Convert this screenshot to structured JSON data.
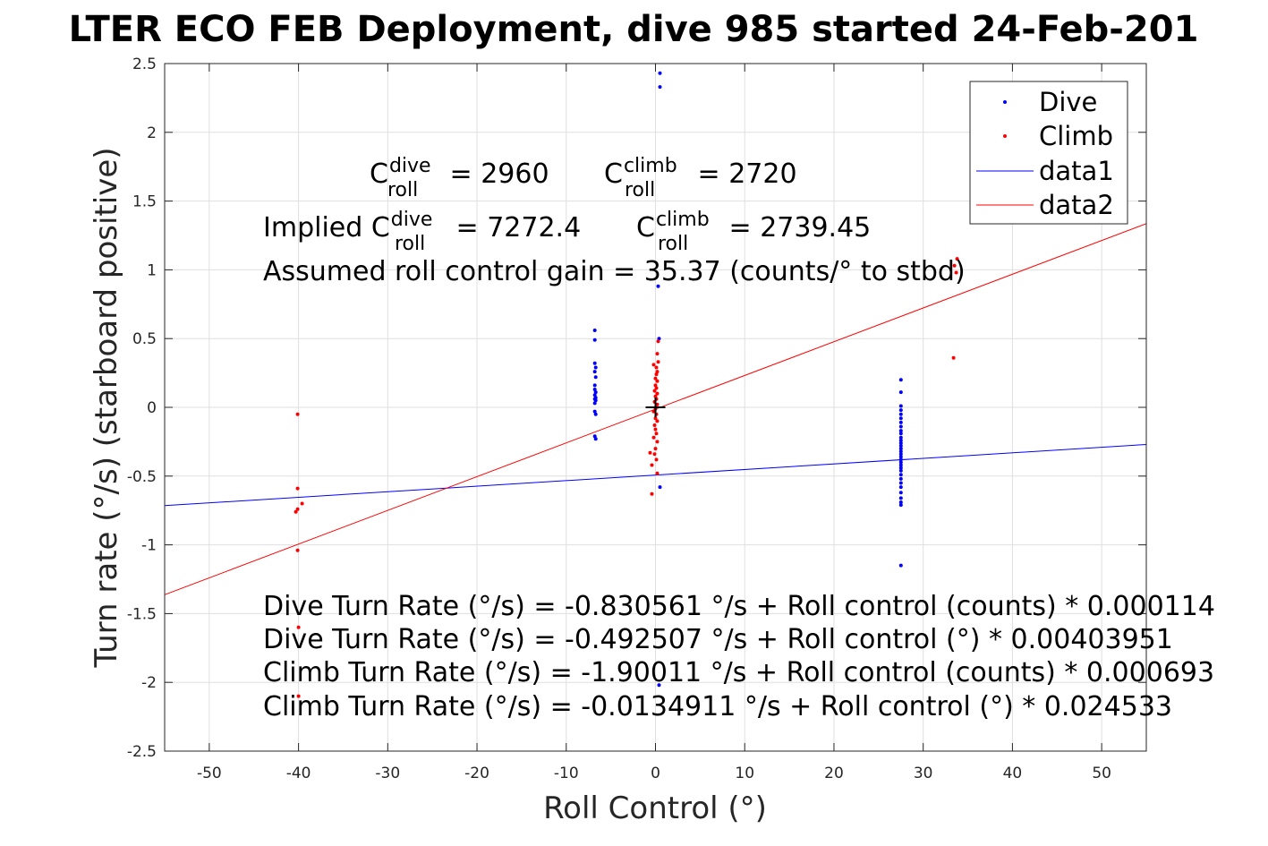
{
  "chart_data": {
    "type": "scatter",
    "title": "LTER ECO FEB Deployment, dive 985 started 24-Feb-201",
    "xlabel": "Roll Control (°)",
    "ylabel": "Turn rate (°/s) (starboard positive)",
    "xlim": [
      -55,
      55
    ],
    "ylim": [
      -2.5,
      2.5
    ],
    "x_ticks": [
      "-50",
      "-40",
      "-30",
      "-20",
      "-10",
      "0",
      "10",
      "20",
      "30",
      "40",
      "50"
    ],
    "y_ticks": [
      "-2.5",
      "-2",
      "-1.5",
      "-1",
      "-0.5",
      "0",
      "0.5",
      "1",
      "1.5",
      "2",
      "2.5"
    ],
    "grid": true,
    "legend_position": "top-right",
    "series": [
      {
        "name": "Dive",
        "kind": "points",
        "color": "#0000ff",
        "points": [
          [
            0.5,
            2.43
          ],
          [
            0.5,
            2.33
          ],
          [
            0.3,
            0.88
          ],
          [
            0.4,
            0.5
          ],
          [
            0.5,
            -0.58
          ],
          [
            0.4,
            -2.02
          ],
          [
            -6.8,
            0.56
          ],
          [
            -6.8,
            0.49
          ],
          [
            -6.8,
            0.32
          ],
          [
            -6.7,
            0.29
          ],
          [
            -6.8,
            0.26
          ],
          [
            -6.7,
            0.22
          ],
          [
            -6.8,
            0.16
          ],
          [
            -6.8,
            0.13
          ],
          [
            -6.7,
            0.11
          ],
          [
            -6.8,
            0.09
          ],
          [
            -6.7,
            0.07
          ],
          [
            -6.8,
            0.06
          ],
          [
            -6.7,
            0.05
          ],
          [
            -6.8,
            0.03
          ],
          [
            -6.8,
            -0.03
          ],
          [
            -6.7,
            -0.05
          ],
          [
            -6.8,
            -0.21
          ],
          [
            -6.7,
            -0.23
          ],
          [
            27.5,
            0.2
          ],
          [
            27.5,
            0.11
          ],
          [
            27.5,
            0.01
          ],
          [
            27.5,
            -0.02
          ],
          [
            27.5,
            -0.05
          ],
          [
            27.5,
            -0.08
          ],
          [
            27.5,
            -0.11
          ],
          [
            27.5,
            -0.14
          ],
          [
            27.5,
            -0.17
          ],
          [
            27.5,
            -0.19
          ],
          [
            27.5,
            -0.22
          ],
          [
            27.5,
            -0.24
          ],
          [
            27.5,
            -0.26
          ],
          [
            27.5,
            -0.28
          ],
          [
            27.5,
            -0.3
          ],
          [
            27.5,
            -0.32
          ],
          [
            27.5,
            -0.34
          ],
          [
            27.5,
            -0.36
          ],
          [
            27.5,
            -0.38
          ],
          [
            27.5,
            -0.4
          ],
          [
            27.5,
            -0.42
          ],
          [
            27.5,
            -0.44
          ],
          [
            27.5,
            -0.46
          ],
          [
            27.5,
            -0.49
          ],
          [
            27.5,
            -0.52
          ],
          [
            27.5,
            -0.55
          ],
          [
            27.5,
            -0.58
          ],
          [
            27.5,
            -0.62
          ],
          [
            27.5,
            -0.66
          ],
          [
            27.5,
            -0.69
          ],
          [
            27.5,
            -0.71
          ],
          [
            27.5,
            -1.15
          ]
        ]
      },
      {
        "name": "Climb",
        "kind": "points",
        "color": "#ff0000",
        "points": [
          [
            -40.1,
            -0.05
          ],
          [
            -40.1,
            -0.59
          ],
          [
            -40.1,
            -0.74
          ],
          [
            -39.6,
            -0.7
          ],
          [
            -40.3,
            -0.76
          ],
          [
            -40.1,
            -1.04
          ],
          [
            -40.0,
            -1.6
          ],
          [
            -40.0,
            -2.1
          ],
          [
            0.3,
            0.48
          ],
          [
            0.2,
            0.39
          ],
          [
            0.3,
            0.33
          ],
          [
            -0.2,
            0.31
          ],
          [
            0.1,
            0.29
          ],
          [
            0.2,
            0.26
          ],
          [
            0.1,
            0.24
          ],
          [
            0.0,
            0.21
          ],
          [
            0.2,
            0.19
          ],
          [
            0.0,
            0.16
          ],
          [
            0.1,
            0.14
          ],
          [
            -0.1,
            0.12
          ],
          [
            0.2,
            0.1
          ],
          [
            0.0,
            0.08
          ],
          [
            0.1,
            0.06
          ],
          [
            -0.1,
            0.04
          ],
          [
            0.2,
            0.02
          ],
          [
            0.0,
            -0.01
          ],
          [
            -0.2,
            -0.03
          ],
          [
            0.1,
            -0.05
          ],
          [
            0.0,
            -0.08
          ],
          [
            0.2,
            -0.1
          ],
          [
            -0.1,
            -0.13
          ],
          [
            0.0,
            -0.16
          ],
          [
            0.1,
            -0.19
          ],
          [
            -0.2,
            -0.22
          ],
          [
            0.2,
            -0.25
          ],
          [
            0.0,
            -0.3
          ],
          [
            -0.1,
            -0.34
          ],
          [
            0.1,
            -0.38
          ],
          [
            -0.4,
            -0.42
          ],
          [
            -0.6,
            -0.33
          ],
          [
            -0.4,
            -0.63
          ],
          [
            0.2,
            -0.48
          ],
          [
            33.8,
            1.08
          ],
          [
            33.5,
            1.03
          ],
          [
            33.7,
            0.98
          ],
          [
            33.4,
            0.36
          ]
        ]
      },
      {
        "name": "data1",
        "kind": "line",
        "color": "#0000ff",
        "points": [
          [
            -55,
            -0.7147
          ],
          [
            55,
            -0.2703
          ]
        ]
      },
      {
        "name": "data2",
        "kind": "line",
        "color": "#ff0000",
        "points": [
          [
            -55,
            -1.3628
          ],
          [
            55,
            1.3358
          ]
        ]
      }
    ],
    "reference_marker": {
      "x": 0,
      "y": 0,
      "symbol": "+"
    },
    "annotations": {
      "c_roll_dive": {
        "prefix": "C",
        "sup": "dive",
        "sub": "roll",
        "value": " = 2960"
      },
      "c_roll_climb": {
        "prefix": "C",
        "sup": "climb",
        "sub": "roll",
        "value": " = 2720"
      },
      "implied_dive": {
        "prefix": "Implied C",
        "sup": "dive",
        "sub": "roll",
        "value": " = 7272.4"
      },
      "implied_climb": {
        "prefix": "C",
        "sup": "climb",
        "sub": "roll",
        "value": " = 2739.45"
      },
      "gain": "Assumed roll control gain = 35.37 (counts/° to stbd)",
      "equations": [
        "Dive Turn Rate (°/s) = -0.830561 °/s + Roll control (counts) * 0.000114",
        "Dive Turn Rate (°/s) = -0.492507 °/s + Roll control (°) * 0.00403951",
        "Climb Turn Rate (°/s) = -1.90011 °/s + Roll control (counts) * 0.000693",
        "Climb Turn Rate (°/s) = -0.0134911 °/s + Roll control (°) * 0.024533"
      ]
    }
  }
}
